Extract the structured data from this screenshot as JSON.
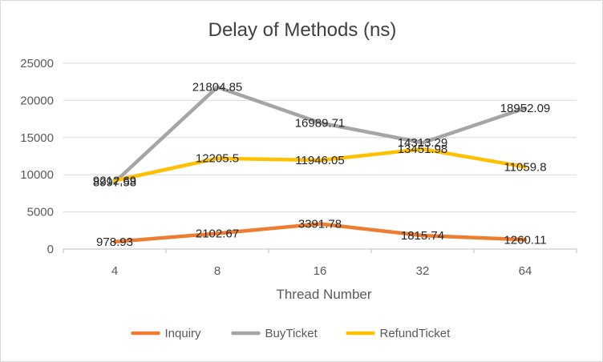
{
  "chart_data": {
    "type": "line",
    "title": "Delay of Methods (ns)",
    "xlabel": "Thread Number",
    "ylabel": "",
    "categories": [
      "4",
      "8",
      "16",
      "32",
      "64"
    ],
    "ylim": [
      0,
      25000
    ],
    "yticks": [
      0,
      5000,
      10000,
      15000,
      20000,
      25000
    ],
    "grid": true,
    "legend": "bottom",
    "series": [
      {
        "name": "Inquiry",
        "color": "#ED7D31",
        "values": [
          978.93,
          2102.67,
          3391.78,
          1815.74,
          1260.11
        ],
        "labels": [
          "978.93",
          "2102.67",
          "3391.78",
          "1815.74",
          "1260.11"
        ]
      },
      {
        "name": "BuyTicket",
        "color": "#A5A5A5",
        "values": [
          8997.58,
          21804.85,
          16989.71,
          14313.29,
          18952.09
        ],
        "labels": [
          "8997.58",
          "21804.85",
          "16989.71",
          "14313.29",
          "18952.09"
        ]
      },
      {
        "name": "RefundTicket",
        "color": "#FFC000",
        "values": [
          9212.69,
          12205.5,
          11946.05,
          13451.98,
          11059.8
        ],
        "labels": [
          "9212.69",
          "12205.5",
          "11946.05",
          "13451.98",
          "11059.8"
        ]
      }
    ]
  }
}
